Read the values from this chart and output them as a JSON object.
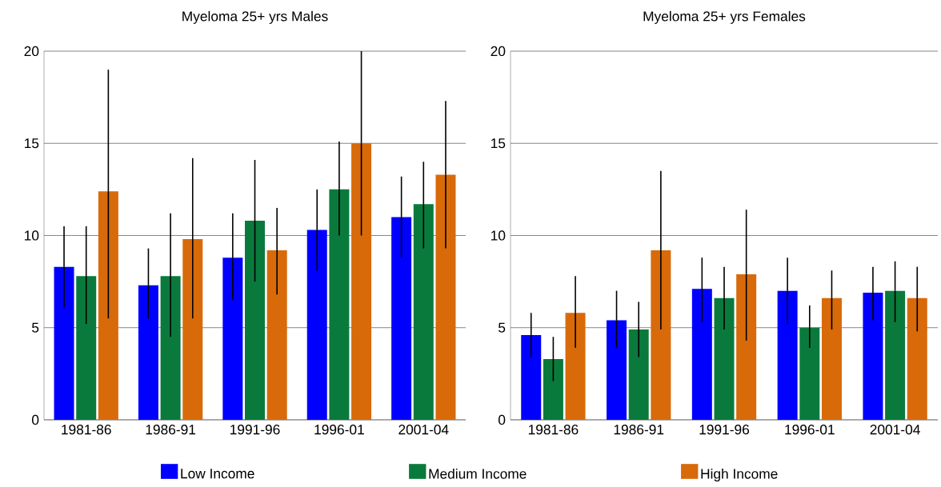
{
  "chart_data": [
    {
      "type": "bar",
      "title": "Myeloma 25+ yrs Males",
      "categories": [
        "1981-86",
        "1986-91",
        "1991-96",
        "1996-01",
        "2001-04"
      ],
      "ylim": [
        0,
        20
      ],
      "yticks": [
        0,
        5,
        10,
        15,
        20
      ],
      "grid": "y",
      "legend": "bottom",
      "series": [
        {
          "name": "Low Income",
          "color": "#0000ff",
          "values": [
            8.3,
            7.3,
            8.8,
            10.3,
            11.0
          ],
          "errors": [
            [
              6.1,
              10.5
            ],
            [
              5.5,
              9.3
            ],
            [
              6.5,
              11.2
            ],
            [
              8.1,
              12.5
            ],
            [
              8.8,
              13.2
            ]
          ]
        },
        {
          "name": "Medium Income",
          "color": "#0a7a3c",
          "values": [
            7.8,
            7.8,
            10.8,
            12.5,
            11.7
          ],
          "errors": [
            [
              5.2,
              10.5
            ],
            [
              4.5,
              11.2
            ],
            [
              7.5,
              14.1
            ],
            [
              10.0,
              15.1
            ],
            [
              9.3,
              14.0
            ]
          ]
        },
        {
          "name": "High Income",
          "color": "#d86a0a",
          "values": [
            12.4,
            9.8,
            9.2,
            15.0,
            13.3
          ],
          "errors": [
            [
              5.5,
              19.0
            ],
            [
              5.5,
              14.2
            ],
            [
              6.8,
              11.5
            ],
            [
              10.0,
              20.0
            ],
            [
              9.3,
              17.3
            ]
          ]
        }
      ]
    },
    {
      "type": "bar",
      "title": "Myeloma 25+ yrs Females",
      "categories": [
        "1981-86",
        "1986-91",
        "1991-96",
        "1996-01",
        "2001-04"
      ],
      "ylim": [
        0,
        20
      ],
      "yticks": [
        0,
        5,
        10,
        15,
        20
      ],
      "grid": "y",
      "series": [
        {
          "color": "#0000ff",
          "values": [
            4.6,
            5.4,
            7.1,
            7.0,
            6.9
          ],
          "errors": [
            [
              3.4,
              5.8
            ],
            [
              3.9,
              7.0
            ],
            [
              5.3,
              8.8
            ],
            [
              5.2,
              8.8
            ],
            [
              5.4,
              8.3
            ]
          ]
        },
        {
          "color": "#0a7a3c",
          "values": [
            3.3,
            4.9,
            6.6,
            5.0,
            7.0
          ],
          "errors": [
            [
              2.1,
              4.5
            ],
            [
              3.4,
              6.4
            ],
            [
              4.9,
              8.3
            ],
            [
              3.9,
              6.2
            ],
            [
              5.3,
              8.6
            ]
          ]
        },
        {
          "color": "#d86a0a",
          "values": [
            5.8,
            9.2,
            7.9,
            6.6,
            6.6
          ],
          "errors": [
            [
              3.9,
              7.8
            ],
            [
              4.9,
              13.5
            ],
            [
              4.3,
              11.4
            ],
            [
              4.9,
              8.1
            ],
            [
              4.8,
              8.3
            ]
          ]
        }
      ]
    }
  ]
}
